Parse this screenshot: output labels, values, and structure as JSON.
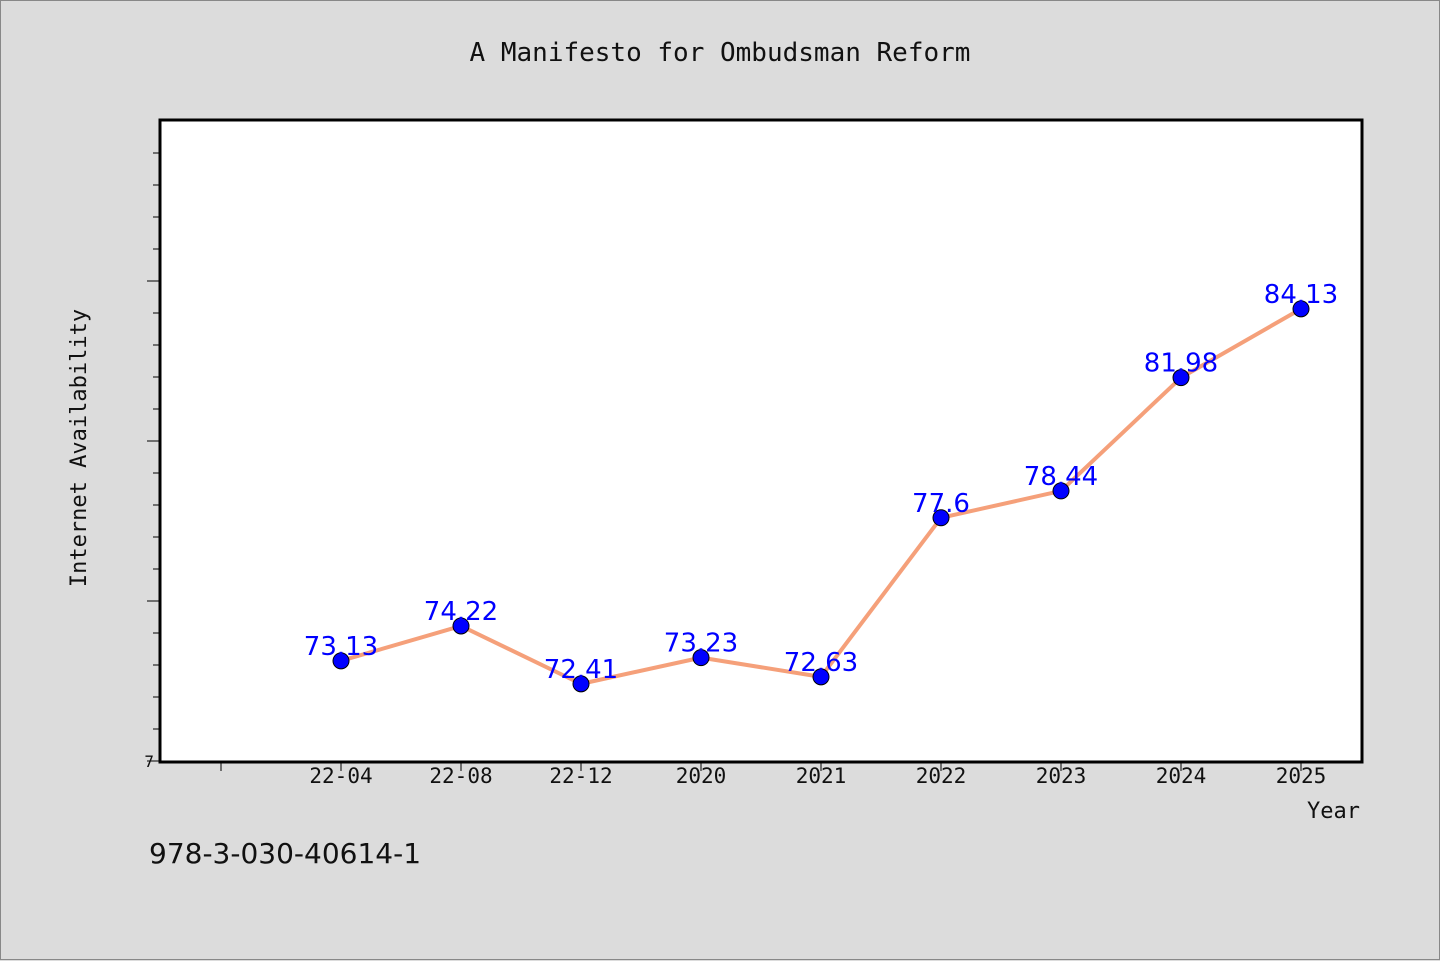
{
  "footer": {
    "isbn": "978-3-030-40614-1"
  },
  "colors": {
    "background": "#dcdcdc",
    "plot_background": "#ffffff",
    "line": "#f5a07a",
    "marker": "#0000ff",
    "data_label": "#0000ff"
  },
  "chart_data": {
    "type": "line",
    "title": "A Manifesto for Ombudsman Reform",
    "xlabel": "Year",
    "ylabel": "Internet Availability",
    "categories": [
      "22-04",
      "22-08",
      "22-12",
      "2020",
      "2021",
      "2022",
      "2023",
      "2024",
      "2025"
    ],
    "series": [
      {
        "values": [
          73.13,
          74.22,
          72.41,
          73.23,
          72.63,
          77.6,
          78.44,
          81.98,
          84.13
        ],
        "labels": [
          "73.13",
          "74.22",
          "72.41",
          "73.23",
          "72.63",
          "77.6",
          "78.44",
          "81.98",
          "84.13"
        ]
      }
    ],
    "ylim": [
      70,
      90
    ],
    "y_tick_label": "7",
    "grid": false,
    "legend": "none"
  }
}
